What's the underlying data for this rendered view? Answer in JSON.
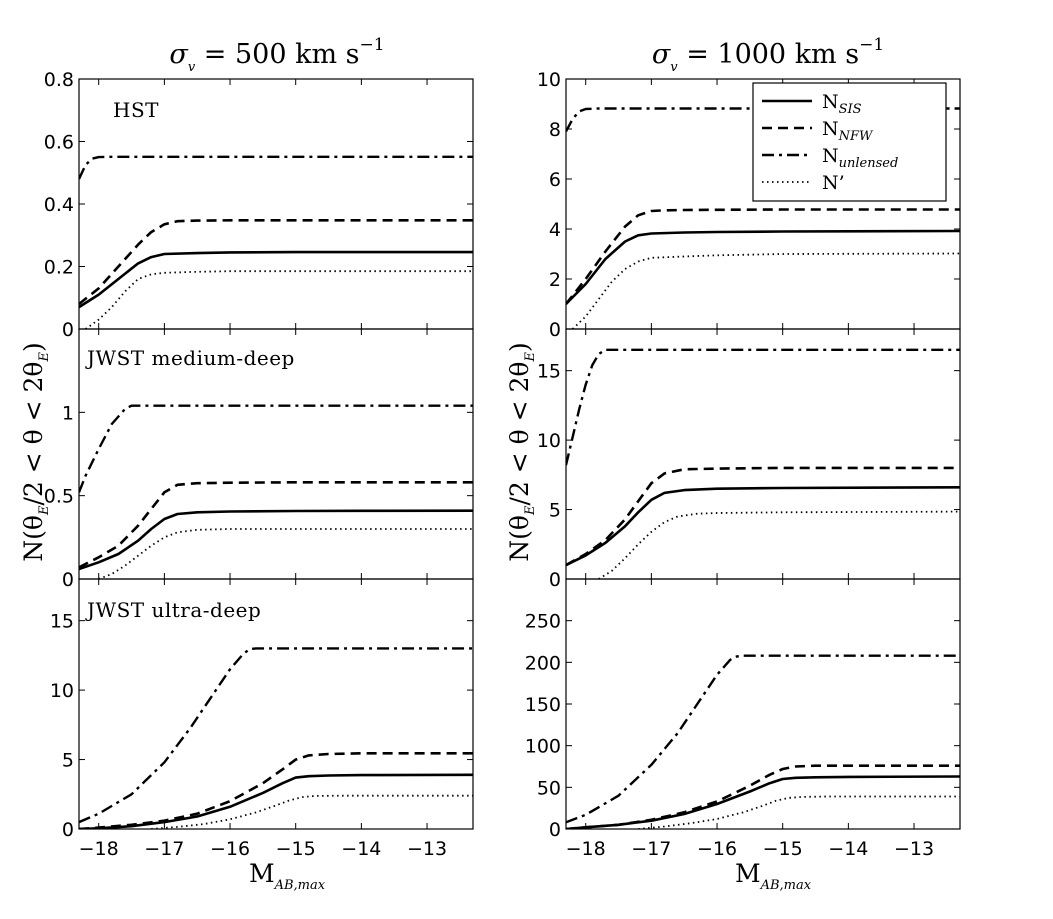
{
  "figure": {
    "column_titles": [
      {
        "sym": "σ",
        "sub": "v",
        "rest": " = 500 km s",
        "sup": "−1"
      },
      {
        "sym": "σ",
        "sub": "v",
        "rest": " = 1000 km s",
        "sup": "−1"
      }
    ],
    "xlabel": {
      "main": "M",
      "sub": "AB,max"
    },
    "ylabel": {
      "main": "N(θ",
      "sub1": "E",
      "mid": "/2 < θ < 2θ",
      "sub2": "E",
      "end": ")"
    }
  },
  "legend": [
    {
      "main": "N",
      "sub": "SIS",
      "style": "solid"
    },
    {
      "main": "N",
      "sub": "NFW",
      "style": "dashed"
    },
    {
      "main": "N",
      "sub": "unlensed",
      "style": "dashdot"
    },
    {
      "main": "N’",
      "sub": "",
      "style": "dotted"
    }
  ],
  "chart_data": [
    {
      "type": "line",
      "id": "hst-500",
      "title": "HST",
      "xlim": [
        -18.3,
        -12.3
      ],
      "ylim": [
        0,
        0.8
      ],
      "xticks": [
        -18,
        -17,
        -16,
        -15,
        -14,
        -13
      ],
      "xtick_labels": [
        "−18",
        "−17",
        "−16",
        "−15",
        "−14",
        "−13"
      ],
      "yticks": [
        0,
        0.2,
        0.4,
        0.6,
        0.8
      ],
      "ytick_labels": [
        "0",
        "0.2",
        "0.4",
        "0.6",
        "0.8"
      ],
      "series": [
        {
          "name": "N_SIS",
          "style": "solid",
          "x": [
            -18.3,
            -18,
            -17.7,
            -17.4,
            -17.2,
            -17,
            -16.5,
            -16,
            -15,
            -14,
            -12.3
          ],
          "y": [
            0.07,
            0.11,
            0.16,
            0.21,
            0.23,
            0.24,
            0.243,
            0.245,
            0.246,
            0.246,
            0.246
          ]
        },
        {
          "name": "N_NFW",
          "style": "dashed",
          "x": [
            -18.3,
            -18,
            -17.7,
            -17.4,
            -17.2,
            -17,
            -16.8,
            -16.5,
            -16,
            -15,
            -12.3
          ],
          "y": [
            0.08,
            0.13,
            0.2,
            0.27,
            0.31,
            0.335,
            0.345,
            0.347,
            0.348,
            0.348,
            0.348
          ]
        },
        {
          "name": "N_unlensed",
          "style": "dashdot",
          "x": [
            -18.3,
            -18.2,
            -18.1,
            -18.0,
            -17.8,
            -12.3
          ],
          "y": [
            0.48,
            0.525,
            0.545,
            0.55,
            0.551,
            0.551
          ]
        },
        {
          "name": "N'",
          "style": "dotted",
          "x": [
            -18.2,
            -18,
            -17.8,
            -17.6,
            -17.4,
            -17.2,
            -17,
            -16.5,
            -16,
            -12.3
          ],
          "y": [
            0.0,
            0.03,
            0.07,
            0.12,
            0.16,
            0.175,
            0.18,
            0.183,
            0.185,
            0.185
          ]
        }
      ]
    },
    {
      "type": "line",
      "id": "hst-1000",
      "xlim": [
        -18.3,
        -12.3
      ],
      "ylim": [
        0,
        10
      ],
      "xticks": [
        -18,
        -17,
        -16,
        -15,
        -14,
        -13
      ],
      "xtick_labels": [
        "−18",
        "−17",
        "−16",
        "−15",
        "−14",
        "−13"
      ],
      "yticks": [
        0,
        2,
        4,
        6,
        8,
        10
      ],
      "ytick_labels": [
        "0",
        "2",
        "4",
        "6",
        "8",
        "10"
      ],
      "series": [
        {
          "name": "N_SIS",
          "style": "solid",
          "x": [
            -18.3,
            -18,
            -17.7,
            -17.4,
            -17.2,
            -17,
            -16.5,
            -16,
            -15,
            -14,
            -12.3
          ],
          "y": [
            1.0,
            1.8,
            2.8,
            3.5,
            3.75,
            3.82,
            3.86,
            3.88,
            3.9,
            3.91,
            3.92
          ]
        },
        {
          "name": "N_NFW",
          "style": "dashed",
          "x": [
            -18.3,
            -18,
            -17.7,
            -17.4,
            -17.2,
            -17,
            -16.8,
            -16.5,
            -16,
            -15,
            -12.3
          ],
          "y": [
            1.0,
            2.0,
            3.1,
            4.1,
            4.55,
            4.72,
            4.75,
            4.76,
            4.77,
            4.78,
            4.78
          ]
        },
        {
          "name": "N_unlensed",
          "style": "dashdot",
          "x": [
            -18.3,
            -18.2,
            -18.1,
            -18.0,
            -17.8,
            -12.3
          ],
          "y": [
            7.9,
            8.4,
            8.7,
            8.8,
            8.82,
            8.82
          ]
        },
        {
          "name": "N'",
          "style": "dotted",
          "x": [
            -18.2,
            -18,
            -17.8,
            -17.6,
            -17.4,
            -17.2,
            -17,
            -16.5,
            -16,
            -15,
            -12.3
          ],
          "y": [
            0.0,
            0.5,
            1.2,
            1.9,
            2.4,
            2.7,
            2.85,
            2.9,
            2.95,
            3.0,
            3.02
          ]
        }
      ]
    },
    {
      "type": "line",
      "id": "jwst-medium-500",
      "title": "JWST medium-deep",
      "xlim": [
        -18.3,
        -12.3
      ],
      "ylim": [
        0,
        1.5
      ],
      "xticks": [
        -18,
        -17,
        -16,
        -15,
        -14,
        -13
      ],
      "xtick_labels": [
        "−18",
        "−17",
        "−16",
        "−15",
        "−14",
        "−13"
      ],
      "yticks": [
        0,
        0.5,
        1
      ],
      "ytick_labels": [
        "0",
        "0.5",
        "1"
      ],
      "series": [
        {
          "name": "N_SIS",
          "style": "solid",
          "x": [
            -18.3,
            -18,
            -17.7,
            -17.4,
            -17.2,
            -17,
            -16.8,
            -16.5,
            -16,
            -15,
            -14,
            -12.3
          ],
          "y": [
            0.06,
            0.1,
            0.15,
            0.23,
            0.3,
            0.36,
            0.39,
            0.4,
            0.405,
            0.408,
            0.409,
            0.41
          ]
        },
        {
          "name": "N_NFW",
          "style": "dashed",
          "x": [
            -18.3,
            -18,
            -17.7,
            -17.4,
            -17.2,
            -17,
            -16.8,
            -16.5,
            -16,
            -15,
            -12.3
          ],
          "y": [
            0.07,
            0.13,
            0.2,
            0.32,
            0.42,
            0.52,
            0.565,
            0.575,
            0.578,
            0.58,
            0.58
          ]
        },
        {
          "name": "N_unlensed",
          "style": "dashdot",
          "x": [
            -18.3,
            -18.2,
            -18.0,
            -17.8,
            -17.6,
            -17.5,
            -17.3,
            -12.3
          ],
          "y": [
            0.52,
            0.62,
            0.78,
            0.93,
            1.02,
            1.04,
            1.04,
            1.04
          ]
        },
        {
          "name": "N'",
          "style": "dotted",
          "x": [
            -18.0,
            -17.8,
            -17.6,
            -17.4,
            -17.2,
            -17,
            -16.8,
            -16.5,
            -16,
            -15,
            -12.3
          ],
          "y": [
            0.0,
            0.03,
            0.08,
            0.14,
            0.2,
            0.25,
            0.28,
            0.295,
            0.3,
            0.3,
            0.3
          ]
        }
      ]
    },
    {
      "type": "line",
      "id": "jwst-medium-1000",
      "xlim": [
        -18.3,
        -12.3
      ],
      "ylim": [
        0,
        18
      ],
      "xticks": [
        -18,
        -17,
        -16,
        -15,
        -14,
        -13
      ],
      "xtick_labels": [
        "−18",
        "−17",
        "−16",
        "−15",
        "−14",
        "−13"
      ],
      "yticks": [
        0,
        5,
        10,
        15
      ],
      "ytick_labels": [
        "0",
        "5",
        "10",
        "15"
      ],
      "series": [
        {
          "name": "N_SIS",
          "style": "solid",
          "x": [
            -18.3,
            -18,
            -17.7,
            -17.4,
            -17.2,
            -17,
            -16.8,
            -16.5,
            -16,
            -15,
            -12.3
          ],
          "y": [
            1.0,
            1.7,
            2.6,
            3.8,
            4.8,
            5.7,
            6.2,
            6.4,
            6.5,
            6.55,
            6.6
          ]
        },
        {
          "name": "N_NFW",
          "style": "dashed",
          "x": [
            -18.3,
            -18,
            -17.7,
            -17.4,
            -17.2,
            -17,
            -16.8,
            -16.5,
            -16,
            -15,
            -12.3
          ],
          "y": [
            1.0,
            1.8,
            2.8,
            4.3,
            5.6,
            6.9,
            7.6,
            7.9,
            7.95,
            8.0,
            8.0
          ]
        },
        {
          "name": "N_unlensed",
          "style": "dashdot",
          "x": [
            -18.3,
            -18.2,
            -18.1,
            -18.0,
            -17.9,
            -17.8,
            -17.7,
            -17.6,
            -12.3
          ],
          "y": [
            8.2,
            10.2,
            12.2,
            14.0,
            15.4,
            16.2,
            16.5,
            16.5,
            16.5
          ]
        },
        {
          "name": "N'",
          "style": "dotted",
          "x": [
            -17.8,
            -17.6,
            -17.4,
            -17.2,
            -17,
            -16.8,
            -16.6,
            -16.3,
            -16,
            -15,
            -12.3
          ],
          "y": [
            0.0,
            0.6,
            1.5,
            2.5,
            3.4,
            4.1,
            4.5,
            4.7,
            4.75,
            4.8,
            4.85
          ]
        }
      ]
    },
    {
      "type": "line",
      "id": "jwst-ultra-500",
      "title": "JWST ultra-deep",
      "xlim": [
        -18.3,
        -12.3
      ],
      "ylim": [
        0,
        18
      ],
      "xticks": [
        -18,
        -17,
        -16,
        -15,
        -14,
        -13
      ],
      "xtick_labels": [
        "−18",
        "−17",
        "−16",
        "−15",
        "−14",
        "−13"
      ],
      "yticks": [
        0,
        5,
        10,
        15
      ],
      "ytick_labels": [
        "0",
        "5",
        "10",
        "15"
      ],
      "series": [
        {
          "name": "N_SIS",
          "style": "solid",
          "x": [
            -18.3,
            -18,
            -17.5,
            -17,
            -16.5,
            -16,
            -15.5,
            -15.2,
            -15,
            -14.8,
            -14.5,
            -14,
            -12.3
          ],
          "y": [
            0.0,
            0.05,
            0.2,
            0.5,
            0.9,
            1.6,
            2.6,
            3.3,
            3.7,
            3.8,
            3.85,
            3.88,
            3.9
          ]
        },
        {
          "name": "N_NFW",
          "style": "dashed",
          "x": [
            -18.3,
            -18,
            -17.5,
            -17,
            -16.5,
            -16,
            -15.5,
            -15.2,
            -15,
            -14.8,
            -14.5,
            -14,
            -12.3
          ],
          "y": [
            0.0,
            0.1,
            0.3,
            0.6,
            1.1,
            2.0,
            3.3,
            4.3,
            5.0,
            5.3,
            5.4,
            5.45,
            5.45
          ]
        },
        {
          "name": "N_unlensed",
          "style": "dashdot",
          "x": [
            -18.3,
            -18,
            -17.5,
            -17,
            -16.6,
            -16.3,
            -16,
            -15.8,
            -15.7,
            -15.6,
            -12.3
          ],
          "y": [
            0.5,
            1.1,
            2.5,
            4.8,
            7.3,
            9.4,
            11.5,
            12.6,
            12.95,
            13.0,
            13.0
          ]
        },
        {
          "name": "N'",
          "style": "dotted",
          "x": [
            -17.2,
            -16.8,
            -16.4,
            -16,
            -15.6,
            -15.3,
            -15.1,
            -14.9,
            -14.7,
            -14.3,
            -12.3
          ],
          "y": [
            0.0,
            0.15,
            0.35,
            0.7,
            1.2,
            1.7,
            2.05,
            2.3,
            2.38,
            2.4,
            2.4
          ]
        }
      ]
    },
    {
      "type": "line",
      "id": "jwst-ultra-1000",
      "xlim": [
        -18.3,
        -12.3
      ],
      "ylim": [
        0,
        300
      ],
      "xticks": [
        -18,
        -17,
        -16,
        -15,
        -14,
        -13
      ],
      "xtick_labels": [
        "−18",
        "−17",
        "−16",
        "−15",
        "−14",
        "−13"
      ],
      "yticks": [
        0,
        50,
        100,
        150,
        200,
        250
      ],
      "ytick_labels": [
        "0",
        "50",
        "100",
        "150",
        "200",
        "250"
      ],
      "series": [
        {
          "name": "N_SIS",
          "style": "solid",
          "x": [
            -18.3,
            -18,
            -17.5,
            -17,
            -16.5,
            -16,
            -15.5,
            -15.2,
            -15,
            -14.8,
            -14.5,
            -14,
            -12.3
          ],
          "y": [
            0.0,
            2.0,
            5.0,
            10.0,
            18.0,
            30.0,
            45.0,
            55.0,
            60.0,
            61.5,
            62.0,
            62.5,
            63.0
          ]
        },
        {
          "name": "N_NFW",
          "style": "dashed",
          "x": [
            -18.3,
            -18,
            -17.5,
            -17,
            -16.5,
            -16,
            -15.5,
            -15.2,
            -15,
            -14.8,
            -14.5,
            -14,
            -12.3
          ],
          "y": [
            0.0,
            2.0,
            5.0,
            11.0,
            20.0,
            33.0,
            52.0,
            65.0,
            72.0,
            75.0,
            76.0,
            76.0,
            76.0
          ]
        },
        {
          "name": "N_unlensed",
          "style": "dashdot",
          "x": [
            -18.3,
            -18,
            -17.5,
            -17,
            -16.6,
            -16.3,
            -16,
            -15.8,
            -15.7,
            -15.6,
            -12.3
          ],
          "y": [
            8.0,
            17.0,
            40.0,
            77.0,
            115.0,
            150.0,
            185.0,
            203.0,
            207.0,
            208.0,
            208.0
          ]
        },
        {
          "name": "N'",
          "style": "dotted",
          "x": [
            -17.2,
            -16.8,
            -16.4,
            -16,
            -15.6,
            -15.3,
            -15.1,
            -14.9,
            -14.7,
            -14.3,
            -12.3
          ],
          "y": [
            0.0,
            3.0,
            7.0,
            12.0,
            20.0,
            28.0,
            34.0,
            37.5,
            38.5,
            39.0,
            39.0
          ]
        }
      ]
    }
  ]
}
